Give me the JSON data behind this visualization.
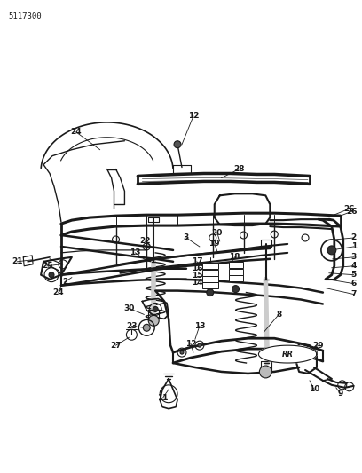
{
  "part_number": "5117300",
  "background_color": "#ffffff",
  "line_color": "#1a1a1a",
  "label_color": "#1a1a1a",
  "figsize": [
    4.08,
    5.33
  ],
  "dpi": 100,
  "label_fontsize": 6.5,
  "label_fontweight": "bold",
  "part_number_fontsize": 6.5,
  "coord_system": {
    "xmin": 0,
    "xmax": 408,
    "ymin": 0,
    "ymax": 533
  }
}
